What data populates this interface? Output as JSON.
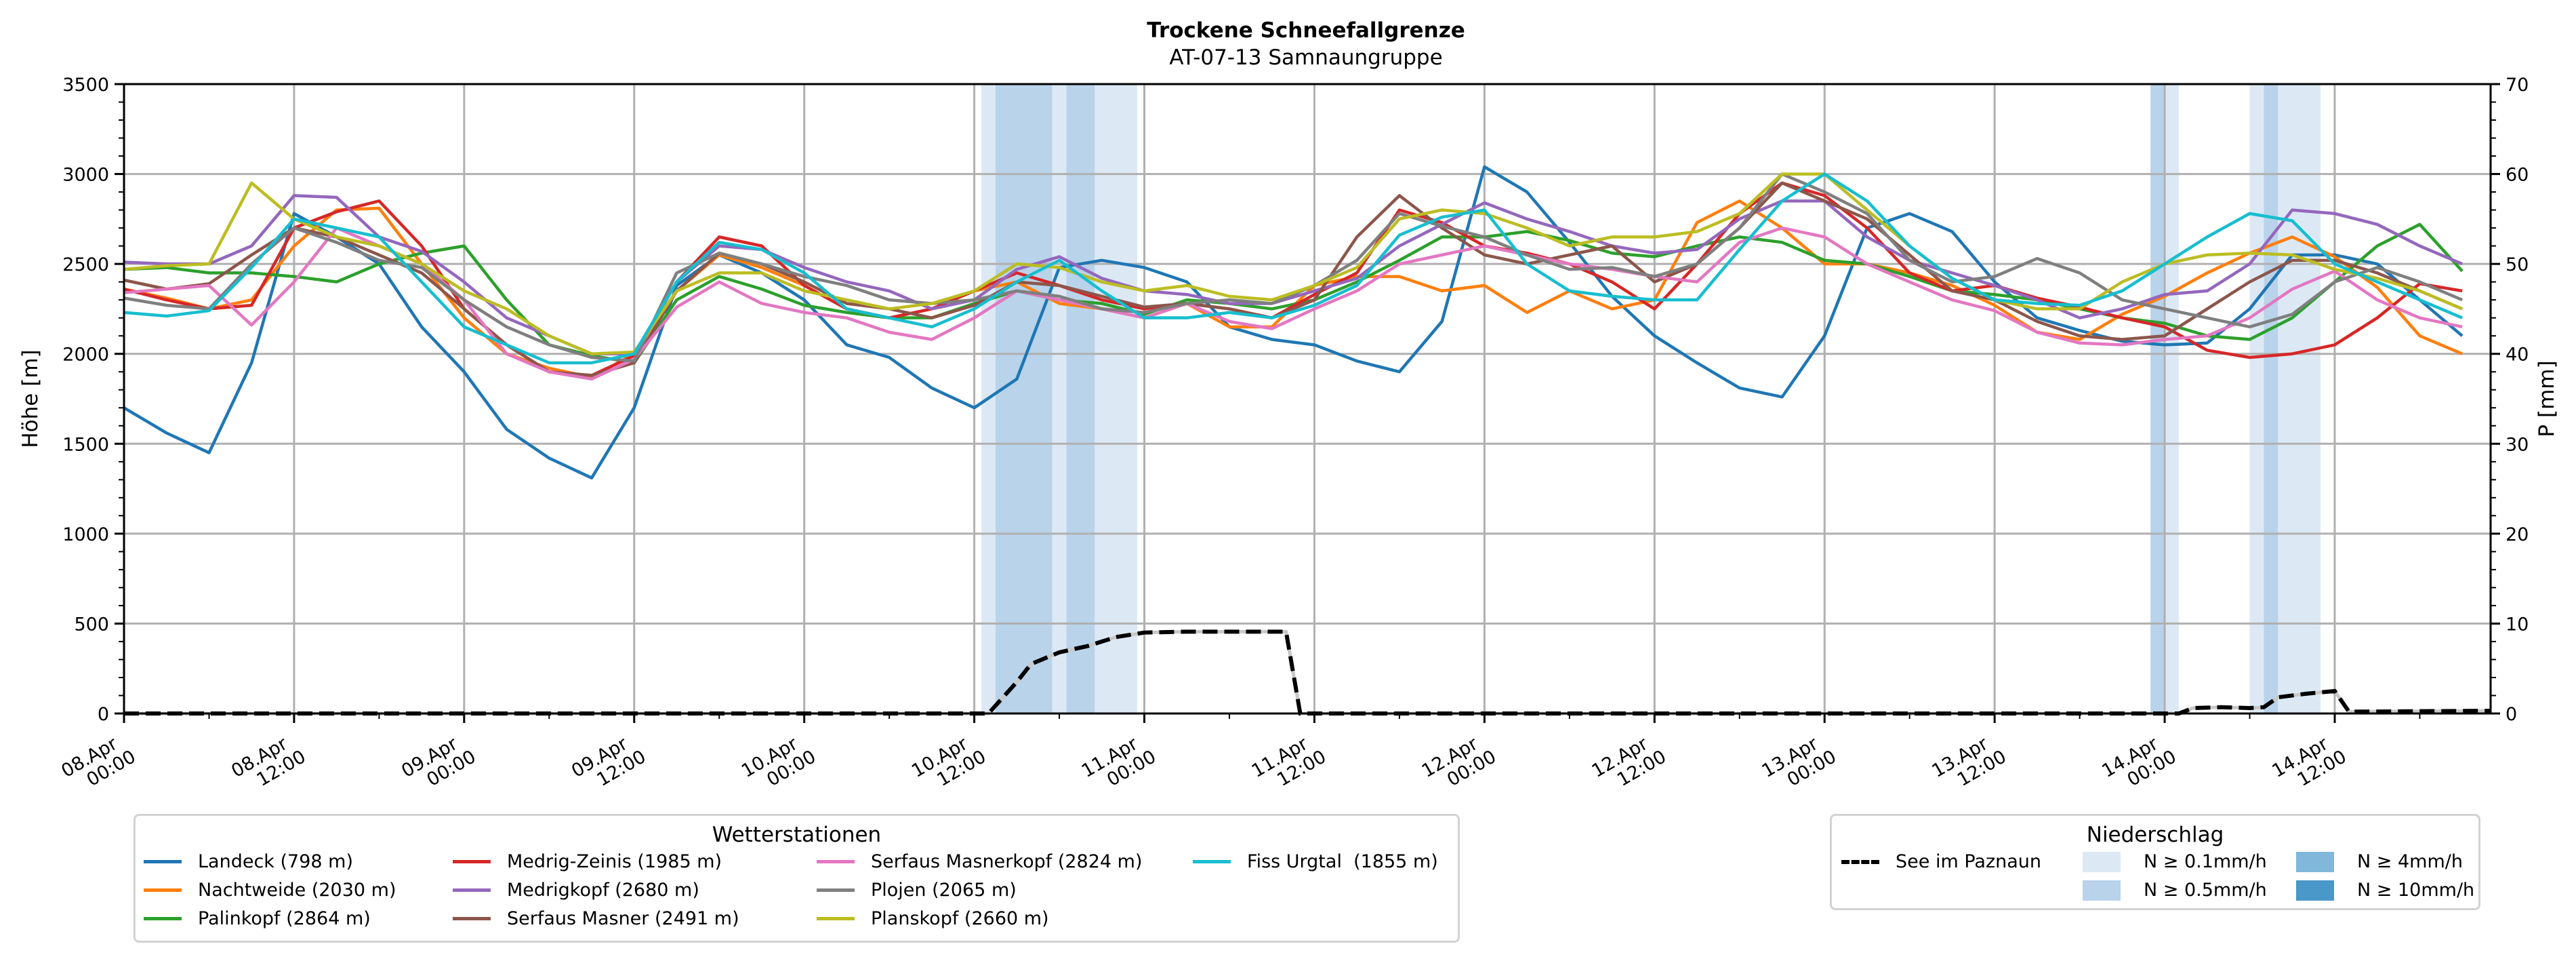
{
  "chart_data": {
    "type": "line",
    "title": "Trockene Schneefallgrenze",
    "subtitle": "AT-07-13 Samnaungruppe",
    "ylabel": "Höhe [m]",
    "ylabel_right": "P [mm]",
    "ylim": [
      0,
      3500
    ],
    "ylim_right": [
      0,
      70
    ],
    "yticks": [
      "0",
      "500",
      "1000",
      "1500",
      "2000",
      "2500",
      "3000",
      "3500"
    ],
    "yticks_right": [
      "0",
      "10",
      "20",
      "30",
      "40",
      "50",
      "60",
      "70"
    ],
    "x_unit": "hours since 08.Apr 00:00",
    "xlim": [
      0,
      167
    ],
    "xticks": [
      {
        "h": 0,
        "label": [
          "08.Apr",
          "00:00"
        ]
      },
      {
        "h": 12,
        "label": [
          "08.Apr",
          "12:00"
        ]
      },
      {
        "h": 24,
        "label": [
          "09.Apr",
          "00:00"
        ]
      },
      {
        "h": 36,
        "label": [
          "09.Apr",
          "12:00"
        ]
      },
      {
        "h": 48,
        "label": [
          "10.Apr",
          "00:00"
        ]
      },
      {
        "h": 60,
        "label": [
          "10.Apr",
          "12:00"
        ]
      },
      {
        "h": 72,
        "label": [
          "11.Apr",
          "00:00"
        ]
      },
      {
        "h": 84,
        "label": [
          "11.Apr",
          "12:00"
        ]
      },
      {
        "h": 96,
        "label": [
          "12.Apr",
          "00:00"
        ]
      },
      {
        "h": 108,
        "label": [
          "12.Apr",
          "12:00"
        ]
      },
      {
        "h": 120,
        "label": [
          "13.Apr",
          "00:00"
        ]
      },
      {
        "h": 132,
        "label": [
          "13.Apr",
          "12:00"
        ]
      },
      {
        "h": 144,
        "label": [
          "14.Apr",
          "00:00"
        ]
      },
      {
        "h": 156,
        "label": [
          "14.Apr",
          "12:00"
        ]
      }
    ],
    "grid": true,
    "x": [
      0,
      3,
      6,
      9,
      12,
      15,
      18,
      21,
      24,
      27,
      30,
      33,
      36,
      39,
      42,
      45,
      48,
      51,
      54,
      57,
      60,
      63,
      66,
      69,
      72,
      75,
      78,
      81,
      84,
      87,
      90,
      93,
      96,
      99,
      102,
      105,
      108,
      111,
      114,
      117,
      120,
      123,
      126,
      129,
      132,
      135,
      138,
      141,
      144,
      147,
      150,
      153,
      156,
      159,
      162,
      165
    ],
    "series": [
      {
        "name": "Landeck (798 m)",
        "color": "#1f77b4",
        "values": [
          1700,
          1560,
          1450,
          1950,
          2780,
          2650,
          2500,
          2150,
          1900,
          1580,
          1420,
          1310,
          1700,
          2380,
          2550,
          2450,
          2300,
          2050,
          1980,
          1810,
          1700,
          1860,
          2480,
          2520,
          2480,
          2400,
          2150,
          2080,
          2050,
          1960,
          1900,
          2180,
          3040,
          2900,
          2620,
          2320,
          2100,
          1950,
          1810,
          1760,
          2100,
          2700,
          2780,
          2680,
          2400,
          2200,
          2130,
          2070,
          2050,
          2060,
          2250,
          2550,
          2550,
          2500,
          2300,
          2100
        ]
      },
      {
        "name": "Nachtweide (2030 m)",
        "color": "#ff7f0e",
        "values": [
          2360,
          2310,
          2250,
          2300,
          2600,
          2800,
          2810,
          2500,
          2200,
          2000,
          1920,
          1870,
          2000,
          2350,
          2550,
          2480,
          2380,
          2250,
          2200,
          2250,
          2350,
          2400,
          2280,
          2250,
          2200,
          2280,
          2150,
          2150,
          2380,
          2430,
          2430,
          2350,
          2380,
          2230,
          2350,
          2250,
          2300,
          2730,
          2850,
          2700,
          2500,
          2500,
          2450,
          2380,
          2270,
          2120,
          2080,
          2220,
          2320,
          2450,
          2560,
          2650,
          2540,
          2370,
          2100,
          2000
        ]
      },
      {
        "name": "Palinkopf (2864 m)",
        "color": "#2ca02c",
        "values": [
          2470,
          2480,
          2450,
          2450,
          2430,
          2400,
          2500,
          2560,
          2600,
          2300,
          2050,
          1990,
          1950,
          2300,
          2430,
          2360,
          2270,
          2230,
          2200,
          2200,
          2280,
          2350,
          2300,
          2280,
          2220,
          2300,
          2280,
          2250,
          2300,
          2400,
          2520,
          2650,
          2650,
          2680,
          2630,
          2560,
          2540,
          2600,
          2650,
          2620,
          2520,
          2500,
          2430,
          2350,
          2330,
          2300,
          2250,
          2200,
          2170,
          2100,
          2080,
          2200,
          2400,
          2600,
          2720,
          2460
        ]
      },
      {
        "name": "Medrig-Zeinis (1985 m)",
        "color": "#d62728",
        "values": [
          2360,
          2300,
          2250,
          2270,
          2700,
          2790,
          2850,
          2600,
          2250,
          2050,
          1900,
          1880,
          1990,
          2400,
          2650,
          2600,
          2380,
          2250,
          2200,
          2250,
          2350,
          2450,
          2380,
          2300,
          2250,
          2280,
          2250,
          2200,
          2330,
          2450,
          2800,
          2730,
          2600,
          2560,
          2500,
          2400,
          2250,
          2500,
          2780,
          2950,
          2880,
          2700,
          2450,
          2350,
          2380,
          2310,
          2260,
          2200,
          2150,
          2020,
          1980,
          2000,
          2050,
          2200,
          2390,
          2350
        ]
      },
      {
        "name": "Medrigkopf (2680 m)",
        "color": "#9467bd",
        "values": [
          2510,
          2500,
          2500,
          2600,
          2880,
          2870,
          2650,
          2570,
          2400,
          2200,
          2100,
          2000,
          2000,
          2400,
          2600,
          2580,
          2480,
          2400,
          2350,
          2250,
          2300,
          2470,
          2540,
          2420,
          2350,
          2330,
          2280,
          2280,
          2350,
          2420,
          2600,
          2720,
          2840,
          2750,
          2680,
          2600,
          2560,
          2580,
          2750,
          2850,
          2850,
          2650,
          2520,
          2450,
          2380,
          2300,
          2200,
          2250,
          2330,
          2350,
          2500,
          2800,
          2780,
          2720,
          2600,
          2500
        ]
      },
      {
        "name": "Serfaus Masner (2491 m)",
        "color": "#8c564b",
        "values": [
          2410,
          2360,
          2390,
          2550,
          2700,
          2650,
          2550,
          2450,
          2250,
          2050,
          1900,
          1880,
          1950,
          2350,
          2560,
          2500,
          2400,
          2280,
          2250,
          2200,
          2270,
          2400,
          2380,
          2320,
          2260,
          2280,
          2250,
          2200,
          2300,
          2650,
          2880,
          2700,
          2550,
          2500,
          2550,
          2600,
          2400,
          2500,
          2700,
          2950,
          2850,
          2750,
          2550,
          2350,
          2300,
          2180,
          2100,
          2080,
          2100,
          2250,
          2400,
          2520,
          2520,
          2450,
          2350,
          2250
        ]
      },
      {
        "name": "Serfaus Masnerkopf (2824 m)",
        "color": "#e377c2",
        "values": [
          2340,
          2360,
          2380,
          2160,
          2400,
          2700,
          2600,
          2500,
          2300,
          2000,
          1900,
          1860,
          1970,
          2260,
          2400,
          2280,
          2230,
          2200,
          2120,
          2080,
          2200,
          2350,
          2300,
          2250,
          2200,
          2280,
          2180,
          2140,
          2250,
          2350,
          2500,
          2550,
          2600,
          2550,
          2500,
          2470,
          2430,
          2400,
          2620,
          2700,
          2650,
          2500,
          2400,
          2300,
          2240,
          2120,
          2060,
          2050,
          2080,
          2100,
          2200,
          2360,
          2460,
          2300,
          2200,
          2150
        ]
      },
      {
        "name": "Plojen (2065 m)",
        "color": "#7f7f7f",
        "values": [
          2310,
          2270,
          2250,
          2500,
          2700,
          2620,
          2520,
          2480,
          2300,
          2150,
          2050,
          1980,
          1960,
          2450,
          2560,
          2500,
          2430,
          2380,
          2300,
          2280,
          2300,
          2350,
          2320,
          2250,
          2230,
          2280,
          2300,
          2280,
          2380,
          2520,
          2780,
          2710,
          2650,
          2550,
          2470,
          2480,
          2430,
          2500,
          2700,
          3000,
          2900,
          2780,
          2520,
          2400,
          2430,
          2530,
          2450,
          2300,
          2250,
          2200,
          2150,
          2220,
          2400,
          2480,
          2400,
          2300
        ]
      },
      {
        "name": "Planskopf (2660 m)",
        "color": "#bcbd22",
        "values": [
          2470,
          2490,
          2500,
          2950,
          2750,
          2650,
          2600,
          2500,
          2350,
          2250,
          2100,
          2000,
          2010,
          2350,
          2450,
          2450,
          2350,
          2300,
          2250,
          2280,
          2350,
          2500,
          2480,
          2400,
          2350,
          2380,
          2320,
          2300,
          2380,
          2480,
          2750,
          2800,
          2780,
          2700,
          2600,
          2650,
          2650,
          2680,
          2780,
          3000,
          3000,
          2800,
          2600,
          2420,
          2300,
          2250,
          2250,
          2400,
          2500,
          2550,
          2560,
          2550,
          2470,
          2420,
          2350,
          2250
        ]
      },
      {
        "name": "Fiss Urgtal  (1855 m)",
        "color": "#17becf",
        "values": [
          2230,
          2210,
          2240,
          2480,
          2750,
          2700,
          2650,
          2400,
          2150,
          2050,
          1950,
          1950,
          2000,
          2400,
          2620,
          2580,
          2450,
          2250,
          2200,
          2150,
          2250,
          2400,
          2520,
          2350,
          2200,
          2200,
          2230,
          2200,
          2270,
          2380,
          2660,
          2760,
          2800,
          2500,
          2350,
          2320,
          2300,
          2300,
          2580,
          2850,
          3000,
          2850,
          2600,
          2420,
          2300,
          2280,
          2270,
          2350,
          2500,
          2650,
          2780,
          2740,
          2500,
          2400,
          2300,
          2200
        ]
      }
    ],
    "precip_line": {
      "name": "See im Paznaun",
      "color": "#000000",
      "unit": "P [mm]",
      "points": [
        [
          0,
          0
        ],
        [
          61,
          0
        ],
        [
          63,
          3.5
        ],
        [
          64,
          5.5
        ],
        [
          66,
          6.8
        ],
        [
          68,
          7.5
        ],
        [
          70,
          8.5
        ],
        [
          72,
          9.0
        ],
        [
          75,
          9.1
        ],
        [
          78,
          9.1
        ],
        [
          81,
          9.1
        ],
        [
          82,
          9.1
        ],
        [
          83,
          0
        ],
        [
          145,
          0
        ],
        [
          146,
          0.6
        ],
        [
          148,
          0.7
        ],
        [
          150,
          0.6
        ],
        [
          151,
          0.7
        ],
        [
          152,
          1.8
        ],
        [
          154,
          2.2
        ],
        [
          156,
          2.5
        ],
        [
          157,
          0.2
        ],
        [
          167,
          0.3
        ]
      ]
    },
    "precip_bands": [
      {
        "class": "N ≥ 0.1mm/h",
        "start": 60.5,
        "end": 61.5
      },
      {
        "class": "N ≥ 0.5mm/h",
        "start": 61.5,
        "end": 65.5
      },
      {
        "class": "N ≥ 0.1mm/h",
        "start": 65.5,
        "end": 66.5
      },
      {
        "class": "N ≥ 0.5mm/h",
        "start": 66.5,
        "end": 68.5
      },
      {
        "class": "N ≥ 0.1mm/h",
        "start": 68.5,
        "end": 71.5
      },
      {
        "class": "N ≥ 0.5mm/h",
        "start": 143.0,
        "end": 144.0
      },
      {
        "class": "N ≥ 0.1mm/h",
        "start": 144.0,
        "end": 145.0
      },
      {
        "class": "N ≥ 0.1mm/h",
        "start": 150.0,
        "end": 151.0
      },
      {
        "class": "N ≥ 0.5mm/h",
        "start": 151.0,
        "end": 152.0
      },
      {
        "class": "N ≥ 0.1mm/h",
        "start": 152.0,
        "end": 155.0
      }
    ],
    "legend_stations": {
      "title": "Wetterstationen",
      "placement": "bottom-left"
    },
    "legend_precip": {
      "title": "Niederschlag",
      "placement": "bottom-right",
      "line_label": "See im Paznaun",
      "classes": [
        {
          "label": "N ≥ 0.1mm/h",
          "color": "#dce9f5"
        },
        {
          "label": "N ≥ 0.5mm/h",
          "color": "#b8d3ea"
        },
        {
          "label": "N ≥ 4mm/h",
          "color": "#80b7db"
        },
        {
          "label": "N ≥ 10mm/h",
          "color": "#4a97c9"
        }
      ]
    }
  }
}
